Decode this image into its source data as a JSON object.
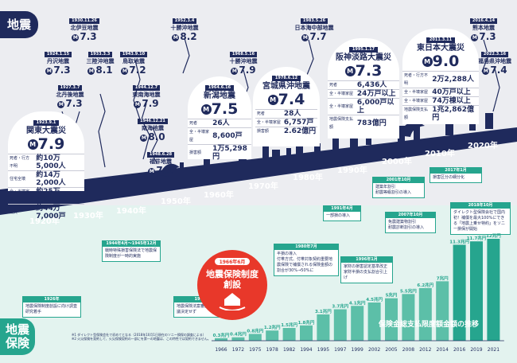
{
  "labels": {
    "earthquake": "地震",
    "insurance": "地震\n保険"
  },
  "decades": [
    "1920年",
    "1930年",
    "1940年",
    "1950年",
    "1960年",
    "1970年",
    "1980年",
    "1990年",
    "2000年",
    "2010年",
    "2020年"
  ],
  "small_quakes": [
    {
      "date": "1930.11.26",
      "name": "北伊豆地震",
      "mag": "7.3"
    },
    {
      "date": "1924.1.15",
      "name": "丹沢地震",
      "mag": "7.3"
    },
    {
      "date": "1927.3.7",
      "name": "北丹後地震",
      "mag": "7.3"
    },
    {
      "date": "1933.3.3",
      "name": "三陸沖地震",
      "mag": "8.1"
    },
    {
      "date": "1943.9.10",
      "name": "鳥取地震",
      "mag": "7.2"
    },
    {
      "date": "1944.12.7",
      "name": "東南海地震",
      "mag": "7.9"
    },
    {
      "date": "1946.12.21",
      "name": "南海地震",
      "mag": "8.0"
    },
    {
      "date": "1948.6.28",
      "name": "福井地震",
      "mag": "7.1"
    },
    {
      "date": "1952.3.4",
      "name": "十勝沖地震",
      "mag": "8.2"
    },
    {
      "date": "1968.5.16",
      "name": "十勝沖地震",
      "mag": "7.9"
    },
    {
      "date": "1983.5.26",
      "name": "日本海中部地震",
      "mag": "7.7"
    },
    {
      "date": "2016.4.14",
      "name": "熊本地震",
      "mag": "7.3"
    },
    {
      "date": "2022.3.16",
      "name": "福島県沖地震",
      "mag": "7.4"
    }
  ],
  "major_quakes": [
    {
      "date": "1923.9.1",
      "name": "関東大震災",
      "mag": "7.9",
      "rows": [
        [
          "死者・行方不明",
          "約10万5,000人"
        ],
        [
          "住宅全壊",
          "約14万2,000人"
        ],
        [
          "全・半壊家屋",
          "約25万4,000戸"
        ],
        [
          "焼失",
          "約44万7,000戸"
        ]
      ]
    },
    {
      "date": "1964.6.16",
      "name": "新潟地震",
      "mag": "7.5",
      "rows": [
        [
          "死者",
          "26人"
        ],
        [
          "全・半壊家屋",
          "8,600戸"
        ],
        [
          "損害額",
          "1万5,298円"
        ]
      ]
    },
    {
      "date": "1978.6.12",
      "name": "宮城県沖地震",
      "mag": "7.4",
      "rows": [
        [
          "死者",
          "28人"
        ],
        [
          "全・半壊家屋",
          "6,757戸"
        ],
        [
          "損害額",
          "2.62億円"
        ]
      ]
    },
    {
      "date": "1995.1.17",
      "name": "阪神淡路大震災",
      "mag": "7.3",
      "rows": [
        [
          "死者",
          "6,436人"
        ],
        [
          "全・半壊家屋",
          "24万戸以上"
        ],
        [
          "全・半壊家屋",
          "6,000戸以上"
        ],
        [
          "地震保険支払額",
          "783億円"
        ]
      ]
    },
    {
      "date": "2011.3.11",
      "name": "東日本大震災",
      "mag": "9.0",
      "rows": [
        [
          "死者・行方不明",
          "2万2,288人"
        ],
        [
          "全・半壊家屋",
          "40万戸以上"
        ],
        [
          "全・半壊家屋",
          "74万棟以上"
        ],
        [
          "地震保険支払額",
          "1兆2,862億円"
        ]
      ]
    }
  ],
  "insurance_notes": [
    {
      "date": "1926年",
      "text": "地震保険制度創設に向け調査研究着手"
    },
    {
      "date": "1944年4月〜1945年12月",
      "text": "戦時特殊損害保険法で地震保険制度が一時的実施"
    },
    {
      "date": "1949年",
      "text": "地震保険法案審議要実を閣議決定せず"
    },
    {
      "date": "1980年7月",
      "text": "半損の導入\n付帯方式、付帯対象契約重要地震保険で補償される保険金額の割合が30%→50%に"
    },
    {
      "date": "1991年4月",
      "text": "一部損の導入"
    },
    {
      "date": "2001年10月",
      "text": "建築年割引\n耐震等級割引の導入"
    },
    {
      "date": "1996年1月",
      "text": "家財の損害認定基準改正\n家財半損の支払割合引上げ"
    },
    {
      "date": "2007年10月",
      "text": "免震建築物割引\n耐震診断割引の導入"
    },
    {
      "date": "2017年1月",
      "text": "損害区分の細分化"
    },
    {
      "date": "2018年10月",
      "text": "ダイレクト型保険会社で国内初！補償を最大100%にできる「地震上乗せ特約」をソニー損保が開始"
    }
  ],
  "creation": {
    "date": "1966年6月",
    "title": "地震保険制度\n創設"
  },
  "payout_title": "保険金総支払限度額金額の推移",
  "chart_data": {
    "type": "bar",
    "categories": [
      "1966",
      "1972",
      "1975",
      "1978",
      "1982",
      "1994",
      "1995",
      "1997",
      "1999",
      "2002",
      "2005",
      "2008",
      "2012",
      "2014",
      "2016",
      "2019",
      "2021"
    ],
    "labels": [
      "0.3兆円",
      "0.4兆円",
      "0.8兆円",
      "1.2兆円",
      "1.5兆円",
      "1.8兆円",
      "3.1兆円",
      "3.7兆円",
      "4.1兆円",
      "4.5兆円",
      "5兆円",
      "5.5兆円",
      "6.2兆円",
      "7兆円",
      "11.3兆円",
      "11.7兆円",
      "12兆円"
    ],
    "values": [
      0.3,
      0.4,
      0.8,
      1.2,
      1.5,
      1.8,
      3.1,
      3.7,
      4.1,
      4.5,
      5,
      5.5,
      6.2,
      7,
      11.3,
      11.7,
      12
    ],
    "ylim": [
      0,
      12
    ]
  },
  "footnote": "※1 ダイレクト型保険会社で初めてとなる（2018年10月1日現在のソニー損保の調査による）\n※2 火災保険を契約して、火災保険契約の一部にを第一の地震は、この特性では契約できません。",
  "colors": {
    "navy": "#1f2a5c",
    "green": "#26a58e",
    "red": "#e8382a"
  }
}
